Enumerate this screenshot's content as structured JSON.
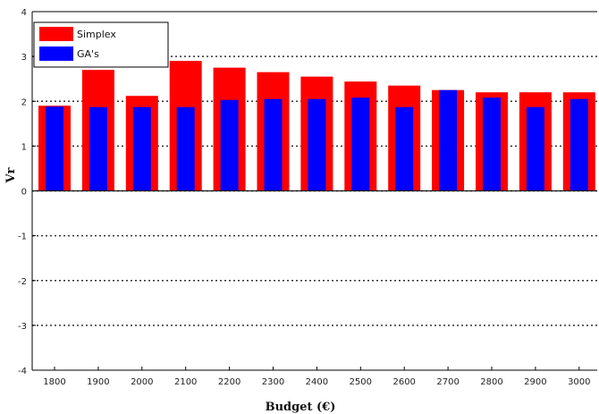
{
  "chart_data": {
    "type": "bar",
    "xlabel": "Budget (€)",
    "ylabel": "Vr",
    "ylim": [
      -4,
      4
    ],
    "yticks": [
      -4,
      -3,
      -2,
      -1,
      0,
      1,
      2,
      3,
      4
    ],
    "grid": "dotted horizontal",
    "legend_position": "top-left",
    "categories": [
      "1800",
      "1900",
      "2000",
      "2100",
      "2200",
      "2300",
      "2400",
      "2500",
      "2600",
      "2700",
      "2800",
      "2900",
      "3000"
    ],
    "series": [
      {
        "name": "Simplex",
        "color": "#ff0000",
        "values": [
          1.9,
          2.7,
          2.12,
          2.9,
          2.75,
          2.65,
          2.55,
          2.44,
          2.35,
          2.25,
          2.2,
          2.2,
          2.2
        ]
      },
      {
        "name": "GA's",
        "color": "#0000ff",
        "values": [
          1.88,
          1.87,
          1.87,
          1.87,
          2.03,
          2.05,
          2.05,
          2.08,
          1.87,
          2.25,
          2.08,
          1.87,
          2.05
        ]
      }
    ]
  }
}
